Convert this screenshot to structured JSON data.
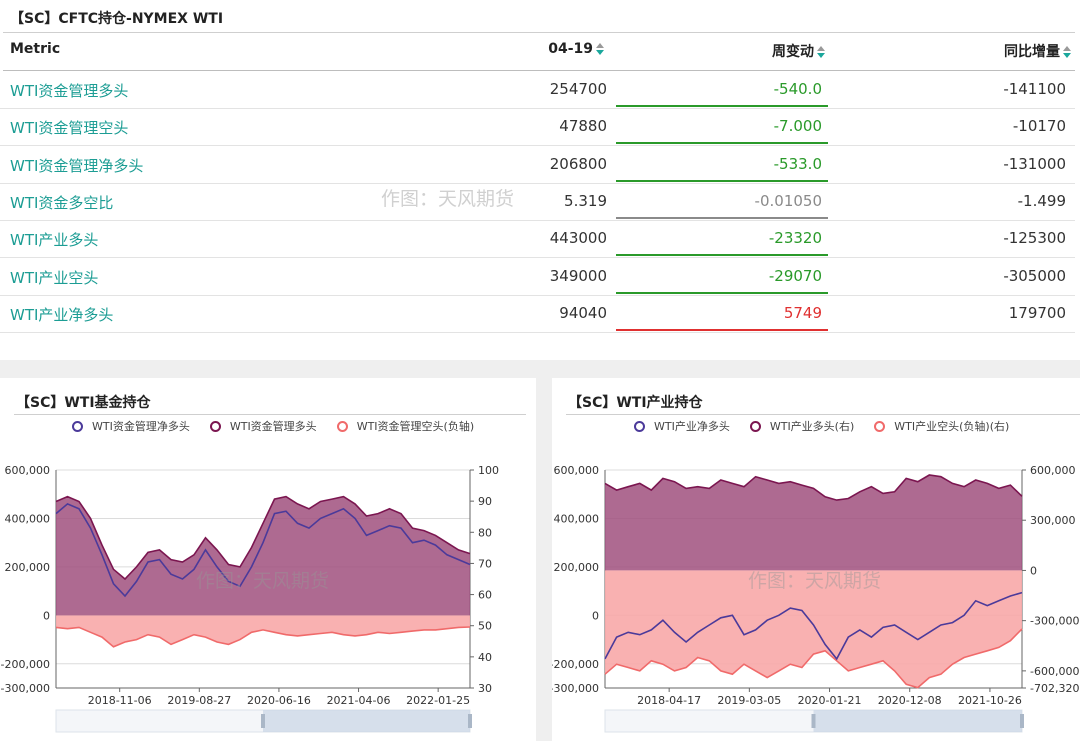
{
  "table_panel": {
    "title": "【SC】CFTC持仓-NYMEX WTI",
    "headers": {
      "metric": "Metric",
      "date": "04-19",
      "weekly_change": "周变动",
      "yoy_change": "同比增量"
    },
    "rows": [
      {
        "metric": "WTI资金管理多头",
        "value": "254700",
        "change": "-540.0",
        "yoy": "-141100",
        "trend": "down"
      },
      {
        "metric": "WTI资金管理空头",
        "value": "47880",
        "change": "-7.000",
        "yoy": "-10170",
        "trend": "down"
      },
      {
        "metric": "WTI资金管理净多头",
        "value": "206800",
        "change": "-533.0",
        "yoy": "-131000",
        "trend": "down"
      },
      {
        "metric": "WTI资金多空比",
        "value": "5.319",
        "change": "-0.01050",
        "yoy": "-1.499",
        "trend": "flat"
      },
      {
        "metric": "WTI产业多头",
        "value": "443000",
        "change": "-23320",
        "yoy": "-125300",
        "trend": "down"
      },
      {
        "metric": "WTI产业空头",
        "value": "349000",
        "change": "-29070",
        "yoy": "-305000",
        "trend": "down"
      },
      {
        "metric": "WTI产业净多头",
        "value": "94040",
        "change": "5749",
        "yoy": "179700",
        "trend": "up"
      }
    ],
    "watermark": "作图：天风期货"
  },
  "colors": {
    "down": "#2a9a2a",
    "up": "#e03030",
    "flat": "#8a8a8a",
    "accent": "#1c9d94",
    "purple_line": "#4b3a9a",
    "maroon_line": "#7b1650",
    "maroon_fill": "#a0507e",
    "pink_line": "#f06a6a",
    "pink_fill": "#f8a8a8"
  },
  "chart_data": [
    {
      "type": "area",
      "title": "【SC】WTI基金持仓",
      "watermark": "作图：天风期货",
      "x_ticks": [
        "2018-11-06",
        "2019-08-27",
        "2020-06-16",
        "2021-04-06",
        "2022-01-25"
      ],
      "y_left_ticks": [
        "600,000",
        "400,000",
        "200,000",
        "0",
        "-200,000",
        "-300,000"
      ],
      "y_right_ticks": [
        "100",
        "90",
        "80",
        "70",
        "60",
        "50",
        "40",
        "30"
      ],
      "ylim_left": [
        -300000,
        600000
      ],
      "ylim_right": [
        30,
        100
      ],
      "series": [
        {
          "name": "WTI资金管理净多头",
          "style": "line",
          "color": "#4b3a9a",
          "values": [
            420000,
            460000,
            440000,
            360000,
            250000,
            130000,
            80000,
            140000,
            220000,
            230000,
            170000,
            150000,
            190000,
            270000,
            200000,
            140000,
            120000,
            200000,
            300000,
            420000,
            430000,
            380000,
            360000,
            400000,
            420000,
            440000,
            400000,
            330000,
            350000,
            370000,
            360000,
            300000,
            310000,
            290000,
            250000,
            230000,
            210000
          ]
        },
        {
          "name": "WTI资金管理多头",
          "style": "area",
          "color": "#7b1650",
          "values": [
            470000,
            490000,
            470000,
            400000,
            290000,
            190000,
            150000,
            200000,
            260000,
            270000,
            230000,
            220000,
            250000,
            320000,
            270000,
            210000,
            200000,
            280000,
            380000,
            480000,
            490000,
            460000,
            440000,
            470000,
            480000,
            490000,
            460000,
            410000,
            420000,
            440000,
            420000,
            360000,
            350000,
            330000,
            300000,
            270000,
            255000
          ]
        },
        {
          "name": "WTI资金管理空头(负轴)",
          "style": "area",
          "color": "#f06a6a",
          "values": [
            -50000,
            -55000,
            -50000,
            -70000,
            -90000,
            -130000,
            -110000,
            -100000,
            -80000,
            -90000,
            -120000,
            -100000,
            -80000,
            -90000,
            -110000,
            -120000,
            -100000,
            -70000,
            -60000,
            -70000,
            -80000,
            -85000,
            -80000,
            -75000,
            -70000,
            -80000,
            -85000,
            -80000,
            -70000,
            -75000,
            -70000,
            -65000,
            -60000,
            -60000,
            -55000,
            -50000,
            -48000
          ]
        }
      ]
    },
    {
      "type": "area",
      "title": "【SC】WTI产业持仓",
      "watermark": "作图：天风期货",
      "x_ticks": [
        "2018-04-17",
        "2019-03-05",
        "2020-01-21",
        "2020-12-08",
        "2021-10-26"
      ],
      "y_left_ticks": [
        "600,000",
        "400,000",
        "200,000",
        "0",
        "-200,000",
        "-300,000"
      ],
      "y_right_ticks": [
        "600,000",
        "300,000",
        "0",
        "-300,000",
        "-600,000",
        "-702,320"
      ],
      "ylim_left": [
        -300000,
        600000
      ],
      "ylim_right": [
        -702320,
        600000
      ],
      "series": [
        {
          "name": "WTI产业净多头",
          "style": "line",
          "color": "#4b3a9a",
          "values": [
            -180000,
            -90000,
            -70000,
            -80000,
            -60000,
            -20000,
            -70000,
            -110000,
            -70000,
            -40000,
            -10000,
            0,
            -80000,
            -60000,
            -20000,
            0,
            30000,
            20000,
            -40000,
            -120000,
            -180000,
            -90000,
            -60000,
            -90000,
            -50000,
            -40000,
            -70000,
            -100000,
            -70000,
            -40000,
            -30000,
            0,
            60000,
            40000,
            60000,
            80000,
            94040
          ]
        },
        {
          "name": "WTI产业多头(右)",
          "style": "area",
          "color": "#7b1650",
          "values": [
            520000,
            480000,
            500000,
            520000,
            480000,
            550000,
            530000,
            490000,
            500000,
            490000,
            540000,
            520000,
            500000,
            560000,
            540000,
            520000,
            530000,
            510000,
            490000,
            440000,
            420000,
            430000,
            470000,
            500000,
            460000,
            470000,
            550000,
            530000,
            570000,
            560000,
            520000,
            500000,
            540000,
            520000,
            490000,
            510000,
            443000
          ]
        },
        {
          "name": "WTI产业空头(负轴)(右)",
          "style": "area",
          "color": "#f06a6a",
          "values": [
            -620000,
            -560000,
            -580000,
            -600000,
            -540000,
            -560000,
            -600000,
            -580000,
            -520000,
            -540000,
            -600000,
            -620000,
            -560000,
            -600000,
            -640000,
            -600000,
            -560000,
            -580000,
            -500000,
            -480000,
            -540000,
            -600000,
            -580000,
            -560000,
            -540000,
            -600000,
            -680000,
            -700000,
            -640000,
            -620000,
            -560000,
            -520000,
            -500000,
            -480000,
            -460000,
            -420000,
            -349000
          ]
        }
      ]
    }
  ]
}
